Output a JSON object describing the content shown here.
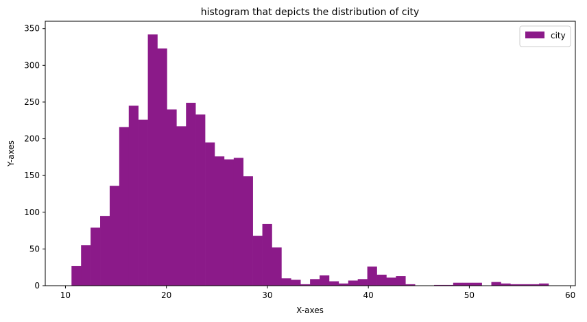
{
  "chart_data": {
    "type": "bar",
    "title": "histogram that depicts the distribution of city",
    "xlabel": "X-axes",
    "ylabel": "Y-axes",
    "xlim": [
      8.0,
      60.5
    ],
    "ylim": [
      0,
      360
    ],
    "xticks": [
      10,
      20,
      30,
      40,
      50,
      60
    ],
    "yticks": [
      0,
      50,
      100,
      150,
      200,
      250,
      300,
      350
    ],
    "grid": false,
    "legend_position": "top-right",
    "bar_color": "#8b1a89",
    "series": [
      {
        "name": "city",
        "bin_width": 0.945,
        "bin_starts": [
          10.6,
          11.545,
          12.49,
          13.435,
          14.38,
          15.325,
          16.27,
          17.215,
          18.16,
          19.105,
          20.05,
          20.995,
          21.94,
          22.885,
          23.83,
          24.775,
          25.72,
          26.665,
          27.61,
          28.555,
          29.5,
          30.445,
          31.39,
          32.335,
          33.28,
          34.225,
          35.17,
          36.115,
          37.06,
          38.005,
          38.95,
          39.895,
          40.84,
          41.785,
          42.73,
          43.675,
          44.62,
          45.565,
          46.51,
          47.455,
          48.4,
          49.345,
          50.29,
          51.235,
          52.18,
          53.125,
          54.07,
          55.015,
          55.96,
          56.905
        ],
        "values": [
          27,
          55,
          79,
          95,
          136,
          216,
          245,
          226,
          342,
          323,
          240,
          217,
          249,
          233,
          195,
          176,
          172,
          174,
          149,
          68,
          84,
          52,
          10,
          8,
          2,
          9,
          14,
          6,
          3,
          7,
          9,
          26,
          15,
          11,
          13,
          2,
          0,
          0,
          1,
          1,
          4,
          4,
          4,
          0,
          5,
          3,
          2,
          2,
          2,
          3
        ]
      }
    ]
  }
}
